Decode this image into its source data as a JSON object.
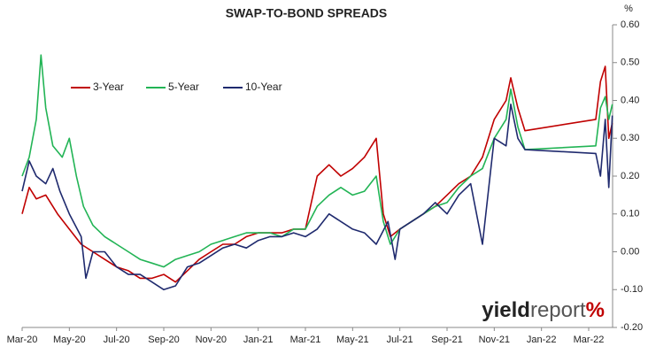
{
  "chart_data": {
    "type": "line",
    "title": "SWAP-TO-BOND SPREADS",
    "y_unit": "%",
    "watermark": [
      "yield",
      "report",
      "%"
    ],
    "xlim": [
      0,
      25.2
    ],
    "xticks": [
      {
        "value": 0,
        "label": "Mar-20"
      },
      {
        "value": 2,
        "label": "May-20"
      },
      {
        "value": 4,
        "label": "Jul-20"
      },
      {
        "value": 6,
        "label": "Sep-20"
      },
      {
        "value": 8,
        "label": "Nov-20"
      },
      {
        "value": 10,
        "label": "Jan-21"
      },
      {
        "value": 12,
        "label": "Mar-21"
      },
      {
        "value": 14,
        "label": "May-21"
      },
      {
        "value": 16,
        "label": "Jul-21"
      },
      {
        "value": 18,
        "label": "Sep-21"
      },
      {
        "value": 20,
        "label": "Nov-21"
      },
      {
        "value": 22,
        "label": "Jan-22"
      },
      {
        "value": 24,
        "label": "Mar-22"
      }
    ],
    "ylim": [
      -0.2,
      0.6
    ],
    "yticks": [
      {
        "value": -0.2,
        "label": "-0.20"
      },
      {
        "value": -0.1,
        "label": "-0.10"
      },
      {
        "value": 0,
        "label": "0.00"
      },
      {
        "value": 0.1,
        "label": "0.10"
      },
      {
        "value": 0.2,
        "label": "0.20"
      },
      {
        "value": 0.3,
        "label": "0.30"
      },
      {
        "value": 0.4,
        "label": "0.40"
      },
      {
        "value": 0.5,
        "label": "0.50"
      },
      {
        "value": 0.6,
        "label": "0.60"
      }
    ],
    "series": [
      {
        "name": "3-Year",
        "color": "#c00000",
        "x": [
          0,
          0.3,
          0.6,
          1,
          1.5,
          2,
          2.5,
          3,
          3.5,
          4,
          4.5,
          5,
          5.5,
          6,
          6.5,
          7,
          7.5,
          8,
          8.5,
          9,
          9.5,
          10,
          10.5,
          11,
          11.5,
          12,
          12.5,
          13,
          13.5,
          14,
          14.5,
          15,
          15.3,
          15.6,
          16,
          16.5,
          17,
          17.5,
          18,
          18.5,
          19,
          19.5,
          20,
          20.5,
          20.7,
          21,
          21.3,
          24.3,
          24.5,
          24.7,
          24.85,
          25
        ],
        "values": [
          0.1,
          0.17,
          0.14,
          0.15,
          0.1,
          0.06,
          0.02,
          0.0,
          -0.02,
          -0.04,
          -0.05,
          -0.07,
          -0.07,
          -0.06,
          -0.08,
          -0.05,
          -0.02,
          0.0,
          0.02,
          0.02,
          0.04,
          0.05,
          0.05,
          0.05,
          0.06,
          0.06,
          0.2,
          0.23,
          0.2,
          0.22,
          0.25,
          0.3,
          0.1,
          0.04,
          0.06,
          0.08,
          0.1,
          0.12,
          0.15,
          0.18,
          0.2,
          0.25,
          0.35,
          0.4,
          0.46,
          0.38,
          0.32,
          0.35,
          0.45,
          0.49,
          0.3,
          0.34
        ]
      },
      {
        "name": "5-Year",
        "color": "#22b455",
        "x": [
          0,
          0.3,
          0.6,
          0.8,
          1,
          1.3,
          1.7,
          2,
          2.3,
          2.6,
          3,
          3.5,
          4,
          4.5,
          5,
          5.5,
          6,
          6.5,
          7,
          7.5,
          8,
          8.5,
          9,
          9.5,
          10,
          10.5,
          11,
          11.5,
          12,
          12.5,
          13,
          13.5,
          14,
          14.5,
          15,
          15.3,
          15.6,
          16,
          16.5,
          17,
          17.5,
          18,
          18.5,
          19,
          19.5,
          20,
          20.5,
          20.7,
          21,
          21.3,
          24.3,
          24.5,
          24.7,
          24.85,
          25
        ],
        "values": [
          0.2,
          0.25,
          0.35,
          0.52,
          0.38,
          0.28,
          0.25,
          0.3,
          0.2,
          0.12,
          0.07,
          0.04,
          0.02,
          0.0,
          -0.02,
          -0.03,
          -0.04,
          -0.02,
          -0.01,
          0.0,
          0.02,
          0.03,
          0.04,
          0.05,
          0.05,
          0.05,
          0.04,
          0.06,
          0.06,
          0.12,
          0.15,
          0.17,
          0.15,
          0.16,
          0.2,
          0.08,
          0.02,
          0.06,
          0.08,
          0.1,
          0.12,
          0.13,
          0.17,
          0.2,
          0.22,
          0.3,
          0.35,
          0.43,
          0.33,
          0.27,
          0.28,
          0.38,
          0.41,
          0.35,
          0.39
        ]
      },
      {
        "name": "10-Year",
        "color": "#1f2a6e",
        "x": [
          0,
          0.3,
          0.6,
          1,
          1.3,
          1.6,
          2,
          2.5,
          2.7,
          3,
          3.5,
          4,
          4.5,
          5,
          5.5,
          6,
          6.5,
          7,
          7.5,
          8,
          8.5,
          9,
          9.5,
          10,
          10.5,
          11,
          11.5,
          12,
          12.5,
          13,
          13.5,
          14,
          14.5,
          15,
          15.5,
          15.8,
          16,
          16.5,
          17,
          17.5,
          18,
          18.5,
          19,
          19.5,
          20,
          20.5,
          20.7,
          21,
          21.3,
          24.3,
          24.5,
          24.7,
          24.85,
          25
        ],
        "values": [
          0.16,
          0.24,
          0.2,
          0.18,
          0.22,
          0.16,
          0.1,
          0.04,
          -0.07,
          0.0,
          0.0,
          -0.04,
          -0.06,
          -0.06,
          -0.08,
          -0.1,
          -0.09,
          -0.04,
          -0.03,
          -0.01,
          0.01,
          0.02,
          0.01,
          0.03,
          0.04,
          0.04,
          0.05,
          0.04,
          0.06,
          0.1,
          0.08,
          0.06,
          0.05,
          0.02,
          0.08,
          -0.02,
          0.06,
          0.08,
          0.1,
          0.13,
          0.1,
          0.15,
          0.18,
          0.02,
          0.3,
          0.28,
          0.39,
          0.3,
          0.27,
          0.26,
          0.2,
          0.35,
          0.17,
          0.36
        ]
      }
    ]
  }
}
